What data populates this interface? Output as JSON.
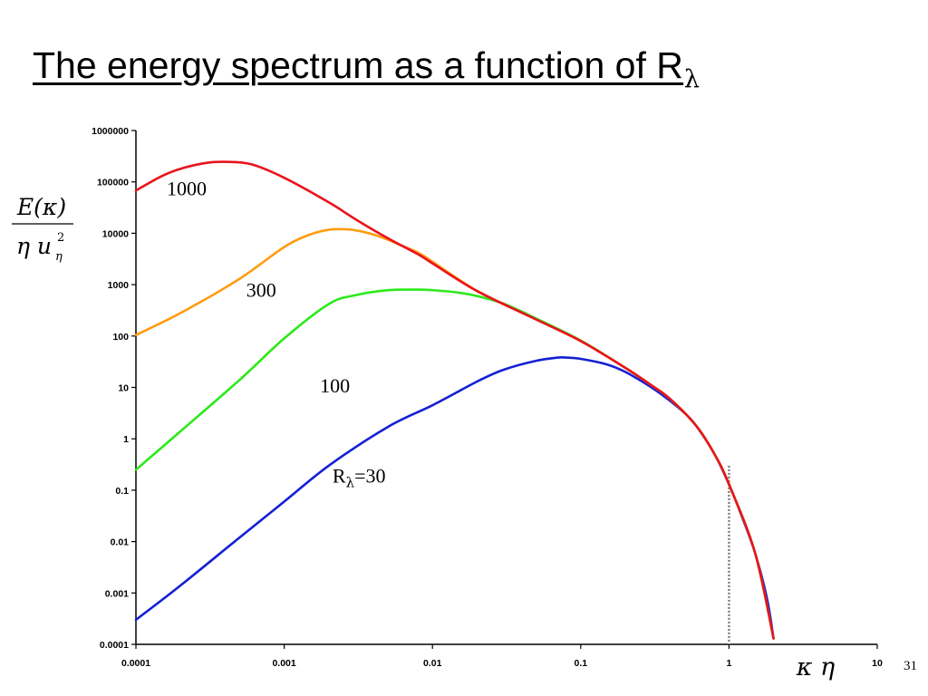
{
  "slide": {
    "title": "The energy spectrum as a function of R",
    "title_subscript": "λ",
    "page_number": "31"
  },
  "chart_data": {
    "type": "line",
    "x_scale": "log",
    "y_scale": "log",
    "xlim": [
      0.0001,
      10
    ],
    "ylim": [
      0.0001,
      1000000
    ],
    "x_ticks": [
      "0.0001",
      "0.001",
      "0.01",
      "0.1",
      "1",
      "10"
    ],
    "y_ticks": [
      "0.0001",
      "0.001",
      "0.01",
      "0.1",
      "1",
      "10",
      "100",
      "1000",
      "10000",
      "100000",
      "1000000"
    ],
    "xlabel": {
      "main": "κ η"
    },
    "ylabel": {
      "numerator": "E(κ)",
      "denominator_base": "η u",
      "denominator_sub": "η",
      "denominator_sup": "2"
    },
    "grid": false,
    "reference_line": {
      "x": 1,
      "y_range": [
        0.0001,
        0.3
      ],
      "style": "dotted",
      "color": "#808080"
    },
    "series": [
      {
        "name": "1000",
        "color": "#e8141c",
        "x": [
          0.0001,
          0.00015,
          0.0002,
          0.0003,
          0.0004,
          0.0006,
          0.001,
          0.002,
          0.003,
          0.005,
          0.008,
          0.01,
          0.02,
          0.05,
          0.1,
          0.2,
          0.3,
          0.4,
          0.6,
          0.8,
          1,
          1.5,
          2
        ],
        "y": [
          68000,
          130000,
          180000,
          235000,
          245000,
          220000,
          120000,
          40000,
          19000,
          8000,
          3900,
          2600,
          750,
          210,
          80,
          24,
          11,
          6,
          1.8,
          0.5,
          0.13,
          0.006,
          0.00013
        ]
      },
      {
        "name": "300",
        "color": "#ff9b0f",
        "x": [
          0.0001,
          0.0002,
          0.0005,
          0.001,
          0.0015,
          0.002,
          0.0025,
          0.003,
          0.004,
          0.005,
          0.006,
          0.008,
          0.01,
          0.02,
          0.05,
          0.1,
          0.2,
          0.3,
          0.4,
          0.6,
          0.8,
          1,
          1.5,
          2
        ],
        "y": [
          105,
          280,
          1300,
          5400,
          9500,
          11700,
          12000,
          11500,
          9500,
          7500,
          6000,
          4200,
          2800,
          760,
          210,
          80,
          24,
          11,
          6,
          1.8,
          0.5,
          0.13,
          0.006,
          0.00013
        ]
      },
      {
        "name": "100",
        "color": "#2ce91a",
        "x": [
          0.0001,
          0.0002,
          0.0005,
          0.001,
          0.002,
          0.003,
          0.005,
          0.008,
          0.01,
          0.012,
          0.015,
          0.02,
          0.03,
          0.05,
          0.1,
          0.2,
          0.3,
          0.4,
          0.6,
          0.8,
          1,
          1.5,
          2
        ],
        "y": [
          0.25,
          1.4,
          14,
          90,
          420,
          620,
          780,
          800,
          780,
          750,
          700,
          600,
          430,
          220,
          82,
          24,
          11,
          6,
          1.8,
          0.5,
          0.13,
          0.006,
          0.00013
        ]
      },
      {
        "name": "R",
        "name_subscript": "λ",
        "name_suffix": "=30",
        "color": "#1420d4",
        "x": [
          0.0001,
          0.0002,
          0.0005,
          0.001,
          0.002,
          0.005,
          0.01,
          0.02,
          0.03,
          0.05,
          0.07,
          0.08,
          0.1,
          0.15,
          0.2,
          0.3,
          0.4,
          0.5,
          0.6,
          0.8,
          1,
          1.2,
          1.5,
          1.8,
          2
        ],
        "y": [
          0.0003,
          0.0014,
          0.012,
          0.06,
          0.3,
          1.7,
          4.5,
          13,
          22,
          33,
          38,
          38,
          36,
          28,
          20,
          10,
          5.5,
          3.2,
          1.8,
          0.5,
          0.13,
          0.035,
          0.006,
          0.0008,
          0.00013
        ]
      }
    ]
  }
}
